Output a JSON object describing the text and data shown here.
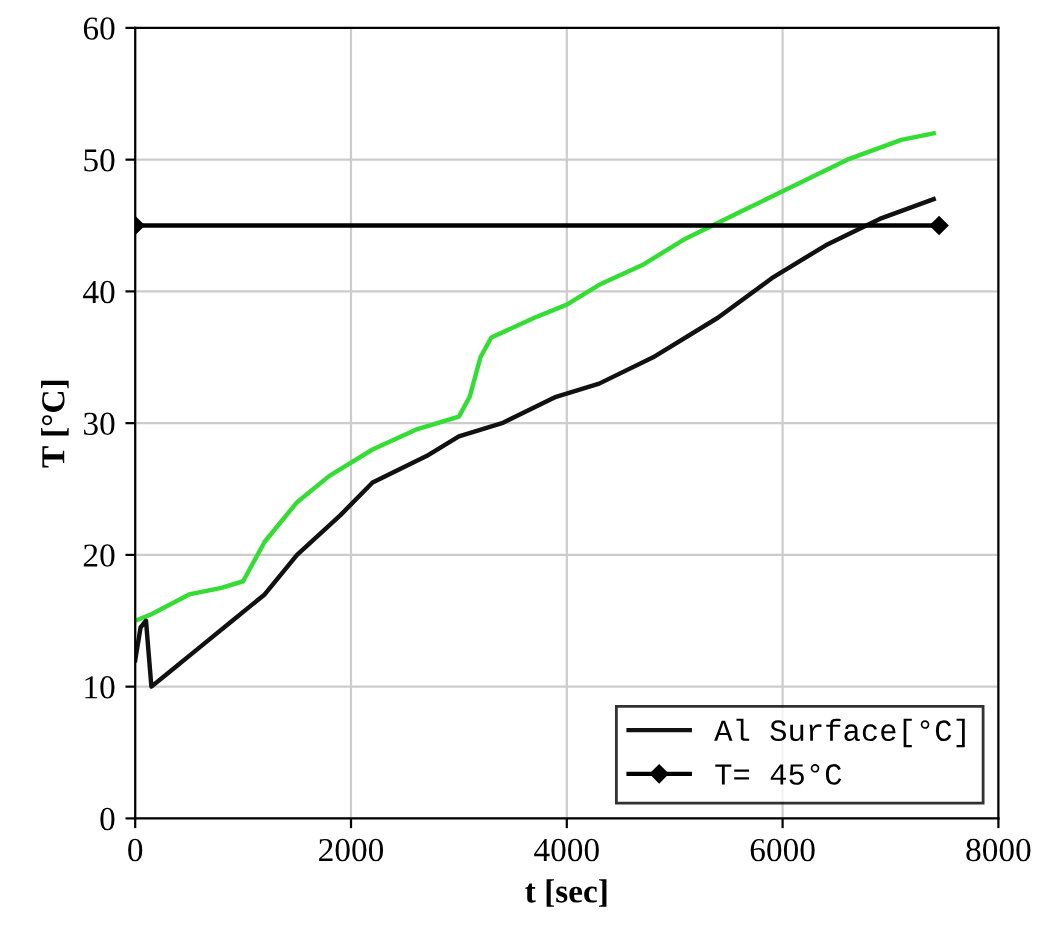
{
  "chart_data": {
    "type": "line",
    "xlabel": "t [sec]",
    "ylabel": "T [°C]",
    "xlim": [
      0,
      8000
    ],
    "ylim": [
      0,
      60
    ],
    "xticks": [
      0,
      2000,
      4000,
      6000,
      8000
    ],
    "yticks": [
      0,
      10,
      20,
      30,
      40,
      50,
      60
    ],
    "grid": true,
    "legend": "bottom right",
    "series": [
      {
        "color": "#33dd33",
        "x": [
          0,
          150,
          500,
          800,
          1000,
          1200,
          1500,
          1800,
          2200,
          2600,
          3000,
          3100,
          3200,
          3300,
          3700,
          4000,
          4300,
          4700,
          5100,
          5600,
          6100,
          6600,
          7100,
          7400
        ],
        "values": [
          15,
          15.5,
          17,
          17.5,
          18,
          21,
          24,
          26,
          28,
          29.5,
          30.5,
          32,
          35,
          36.5,
          38,
          39,
          40.5,
          42,
          44,
          46,
          48,
          50,
          51.5,
          52
        ]
      },
      {
        "name": "Al Surface[°C]",
        "color": "#111111",
        "x": [
          0,
          50,
          100,
          150,
          300,
          600,
          900,
          1200,
          1500,
          1900,
          2200,
          2700,
          3000,
          3400,
          3900,
          4300,
          4800,
          5400,
          5900,
          6400,
          6900,
          7400
        ],
        "values": [
          12,
          14.5,
          15,
          10,
          11,
          13,
          15,
          17,
          20,
          23,
          25.5,
          27.5,
          29,
          30,
          32,
          33,
          35,
          38,
          41,
          43.5,
          45.5,
          47
        ]
      },
      {
        "name": "T= 45°C",
        "color": "#000000",
        "marker": "diamond",
        "x": [
          0,
          7450
        ],
        "values": [
          45,
          45
        ]
      }
    ]
  }
}
